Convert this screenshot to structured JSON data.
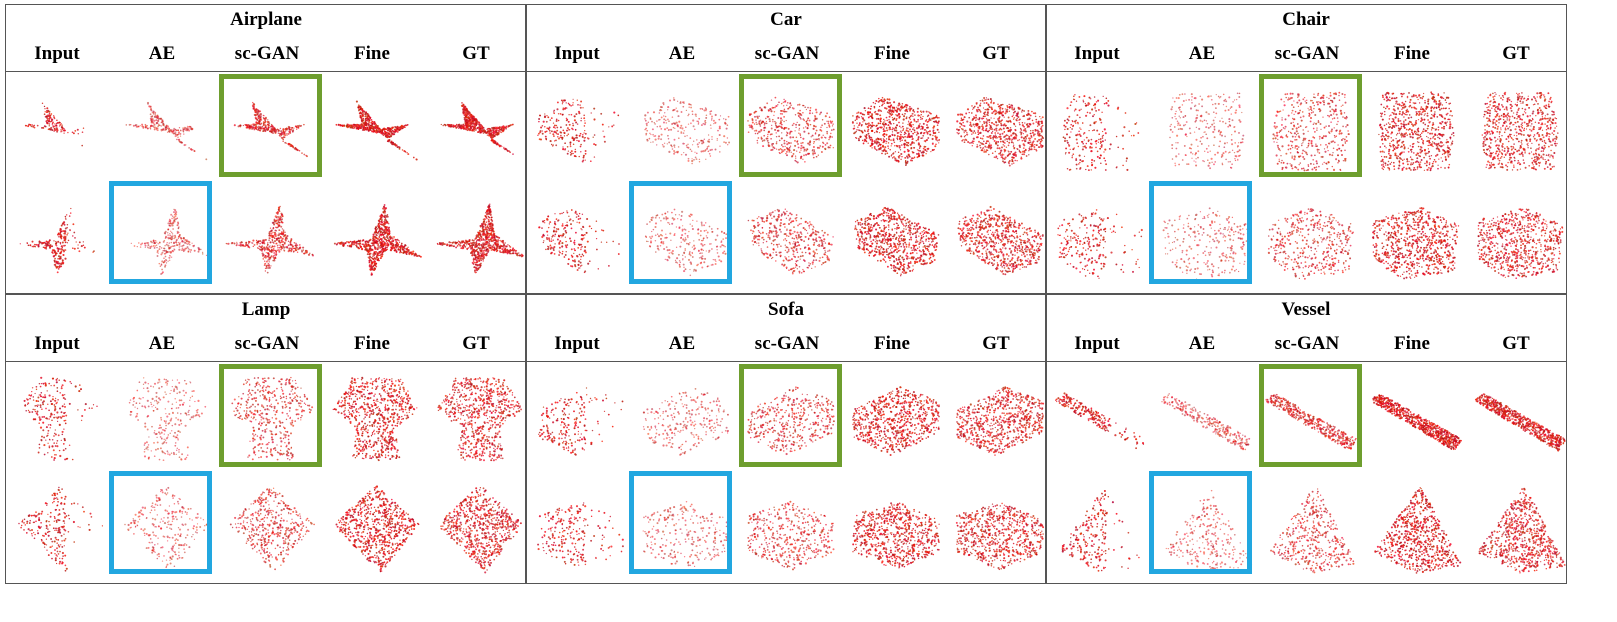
{
  "column_headers": [
    "Input",
    "AE",
    "sc-GAN",
    "Fine",
    "GT"
  ],
  "panels": [
    {
      "title": "Airplane",
      "shapes": [
        "airplane-a",
        "airplane-b"
      ]
    },
    {
      "title": "Car",
      "shapes": [
        "car-a",
        "car-b"
      ]
    },
    {
      "title": "Chair",
      "shapes": [
        "chair-a",
        "chair-b"
      ]
    },
    {
      "title": "Lamp",
      "shapes": [
        "lamp-a",
        "lamp-b"
      ]
    },
    {
      "title": "Sofa",
      "shapes": [
        "sofa-a",
        "sofa-b"
      ]
    },
    {
      "title": "Vessel",
      "shapes": [
        "vessel-a",
        "vessel-b"
      ]
    }
  ],
  "highlight_colors": {
    "sc-GAN": "#6e9e2e",
    "AE": "#22a7e0"
  },
  "point_color": "#c81e1e"
}
